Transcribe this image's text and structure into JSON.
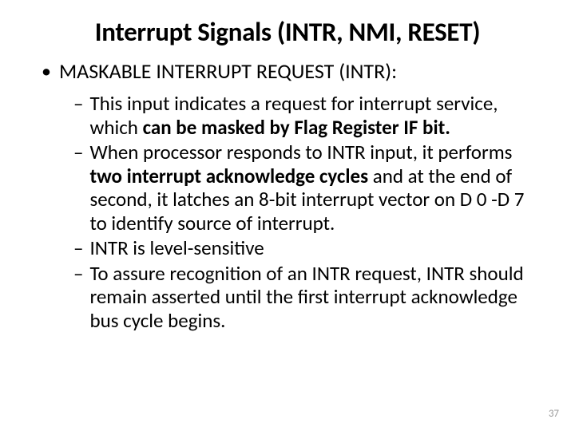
{
  "title": "Interrupt Signals (INTR, NMI, RESET)",
  "section_heading": "MASKABLE INTERRUPT REQUEST (INTR):",
  "items": [
    {
      "pre": "This input indicates a request for interrupt service, which ",
      "bold": "can be masked by Flag Register IF bit.",
      "post": ""
    },
    {
      "pre": "When processor responds to INTR input, it performs ",
      "bold": "two interrupt acknowledge cycles",
      "post": " and at the end of second, it latches an 8-bit interrupt vector on D 0 -D 7 to identify  source of interrupt."
    },
    {
      "pre": "INTR is level-sensitive",
      "bold": "",
      "post": ""
    },
    {
      "pre": "To assure recognition of an INTR request, INTR should remain asserted until the first interrupt acknowledge bus cycle begins.",
      "bold": "",
      "post": ""
    }
  ],
  "page_number": "37",
  "bullets": {
    "level1": "•",
    "level2": "–"
  },
  "colors": {
    "text": "#000000",
    "background": "#ffffff",
    "pagenum": "#9a9a9a"
  },
  "fonts": {
    "title_size": 33,
    "level1_size": 26,
    "level2_size": 25
  }
}
